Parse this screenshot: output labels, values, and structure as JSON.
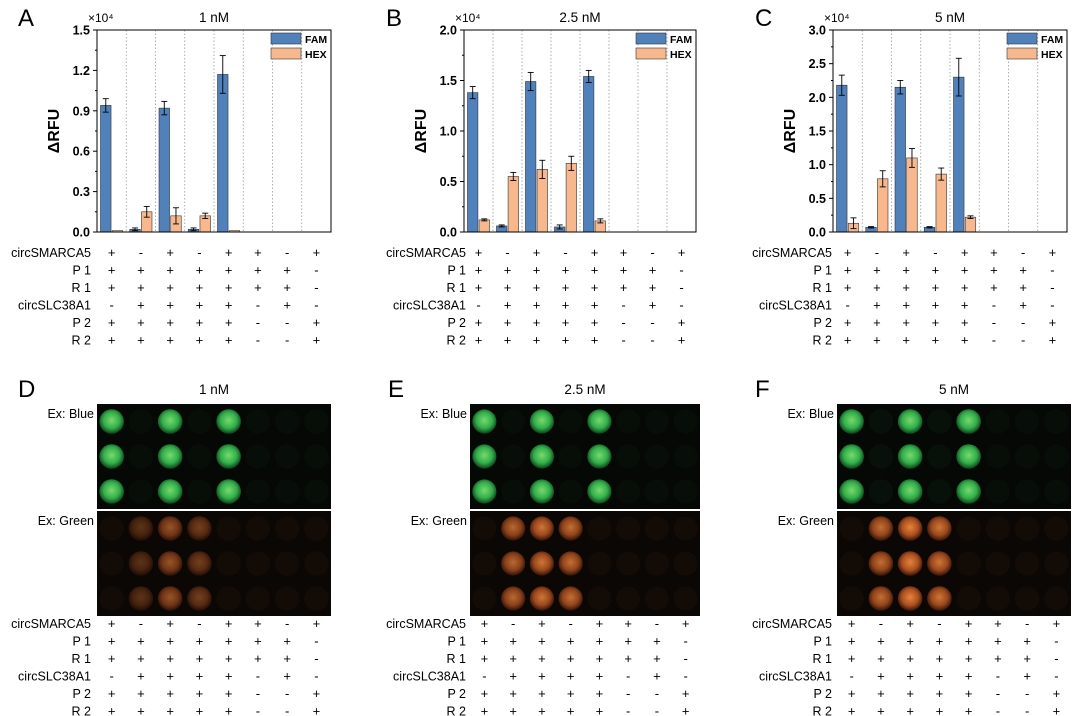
{
  "colors": {
    "fam": "#4f81bd",
    "hex": "#f8b88b",
    "axis": "#000000",
    "separator": "#9a9a9a"
  },
  "matrix": {
    "row_labels": [
      "circSMARCA5",
      "P 1",
      "R 1",
      "circSLC38A1",
      "P 2",
      "R 2"
    ],
    "signs": [
      [
        "+",
        "-",
        "+",
        "-",
        "+",
        "+",
        "-",
        "+"
      ],
      [
        "+",
        "+",
        "+",
        "+",
        "+",
        "+",
        "+",
        "-"
      ],
      [
        "+",
        "+",
        "+",
        "+",
        "+",
        "+",
        "+",
        "-"
      ],
      [
        "-",
        "+",
        "+",
        "+",
        "+",
        "-",
        "+",
        "-"
      ],
      [
        "+",
        "+",
        "+",
        "+",
        "+",
        "-",
        "-",
        "+"
      ],
      [
        "+",
        "+",
        "+",
        "+",
        "+",
        "-",
        "-",
        "+"
      ]
    ]
  },
  "chart_data": [
    {
      "type": "bar",
      "panel_letter": "A",
      "title": "1 nM",
      "ylabel": "ΔRFU",
      "multiplier": "×10⁴",
      "ylim": [
        0,
        1.5
      ],
      "yticks": [
        "0.0",
        "0.3",
        "0.6",
        "0.9",
        "1.2",
        "1.5"
      ],
      "legend": [
        "FAM",
        "HEX"
      ],
      "series": [
        {
          "name": "FAM",
          "values": [
            0.94,
            0.02,
            0.92,
            0.02,
            1.17,
            0.0,
            0.0,
            0.0
          ],
          "errors": [
            0.05,
            0.01,
            0.05,
            0.01,
            0.14,
            0.0,
            0.0,
            0.0
          ]
        },
        {
          "name": "HEX",
          "values": [
            0.01,
            0.15,
            0.12,
            0.12,
            0.01,
            0.0,
            0.0,
            0.0
          ],
          "errors": [
            0.0,
            0.04,
            0.06,
            0.02,
            0.0,
            0.0,
            0.0,
            0.0
          ]
        }
      ]
    },
    {
      "type": "bar",
      "panel_letter": "B",
      "title": "2.5 nM",
      "ylabel": "ΔRFU",
      "multiplier": "×10⁴",
      "ylim": [
        0,
        2.0
      ],
      "yticks": [
        "0.0",
        "0.5",
        "1.0",
        "1.5",
        "2.0"
      ],
      "legend": [
        "FAM",
        "HEX"
      ],
      "series": [
        {
          "name": "FAM",
          "values": [
            1.38,
            0.06,
            1.49,
            0.05,
            1.54,
            0.0,
            0.0,
            0.0
          ],
          "errors": [
            0.06,
            0.01,
            0.09,
            0.02,
            0.06,
            0.0,
            0.0,
            0.0
          ]
        },
        {
          "name": "HEX",
          "values": [
            0.12,
            0.55,
            0.62,
            0.68,
            0.11,
            0.0,
            0.0,
            0.0
          ],
          "errors": [
            0.01,
            0.04,
            0.09,
            0.07,
            0.02,
            0.0,
            0.0,
            0.0
          ]
        }
      ]
    },
    {
      "type": "bar",
      "panel_letter": "C",
      "title": "5 nM",
      "ylabel": "ΔRFU",
      "multiplier": "×10⁴",
      "ylim": [
        0,
        3.0
      ],
      "yticks": [
        "0.0",
        "0.5",
        "1.0",
        "1.5",
        "2.0",
        "2.5",
        "3.0"
      ],
      "legend": [
        "FAM",
        "HEX"
      ],
      "series": [
        {
          "name": "FAM",
          "values": [
            2.18,
            0.07,
            2.15,
            0.07,
            2.3,
            0.0,
            0.0,
            0.0
          ],
          "errors": [
            0.15,
            0.01,
            0.1,
            0.01,
            0.28,
            0.0,
            0.0,
            0.0
          ]
        },
        {
          "name": "HEX",
          "values": [
            0.13,
            0.79,
            1.1,
            0.86,
            0.22,
            0.0,
            0.0,
            0.0
          ],
          "errors": [
            0.08,
            0.12,
            0.14,
            0.09,
            0.02,
            0.0,
            0.0,
            0.0
          ]
        }
      ]
    }
  ],
  "images": [
    {
      "panel_letter": "D",
      "title": "1 nM",
      "label_blue": "Ex: Blue",
      "label_green": "Ex: Green",
      "blue": [
        1,
        0,
        1,
        0,
        1,
        0,
        0,
        0
      ],
      "green": [
        0.15,
        0.35,
        0.6,
        0.45,
        0.2,
        0.05,
        0.05,
        0.05
      ]
    },
    {
      "panel_letter": "E",
      "title": "2.5 nM",
      "label_blue": "Ex: Blue",
      "label_green": "Ex: Green",
      "blue": [
        1,
        0,
        1,
        0,
        1,
        0,
        0,
        0
      ],
      "green": [
        0.2,
        0.75,
        0.85,
        0.8,
        0.2,
        0.05,
        0.05,
        0.05
      ]
    },
    {
      "panel_letter": "F",
      "title": "5 nM",
      "label_blue": "Ex: Blue",
      "label_green": "Ex: Green",
      "blue": [
        1,
        0.15,
        1,
        0.15,
        1,
        0,
        0,
        0
      ],
      "green": [
        0.1,
        0.8,
        0.95,
        0.85,
        0.1,
        0.05,
        0.05,
        0.05
      ]
    }
  ]
}
